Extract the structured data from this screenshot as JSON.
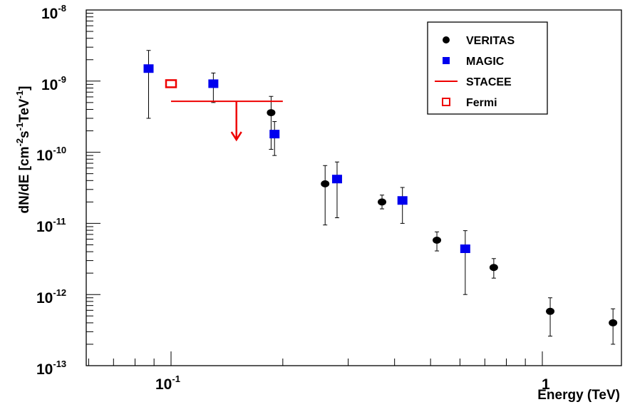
{
  "chart_data": {
    "type": "scatter",
    "title": "",
    "xlabel": "Energy (TeV)",
    "ylabel_main": "dN/dE [cm",
    "ylabel_parts": [
      "dN/dE [cm",
      "-2",
      "s",
      "-1",
      "TeV",
      "-1",
      "]"
    ],
    "xscale": "log",
    "yscale": "log",
    "xlim": [
      0.06,
      1.8
    ],
    "ylim": [
      1e-13,
      1e-08
    ],
    "x_ticks": [
      {
        "value": 0.1,
        "base": "10",
        "exp": "-1"
      },
      {
        "value": 1,
        "label": "1"
      }
    ],
    "y_ticks": [
      {
        "value": 1e-13,
        "base": "10",
        "exp": "-13"
      },
      {
        "value": 1e-12,
        "base": "10",
        "exp": "-12"
      },
      {
        "value": 1e-11,
        "base": "10",
        "exp": "-11"
      },
      {
        "value": 1e-10,
        "base": "10",
        "exp": "-10"
      },
      {
        "value": 1e-09,
        "base": "10",
        "exp": "-9"
      },
      {
        "value": 1e-08,
        "base": "10",
        "exp": "-8"
      }
    ],
    "grid": false,
    "legend_position": "top-right",
    "series": [
      {
        "name": "VERITAS",
        "marker": "circle",
        "color": "#000000",
        "points": [
          {
            "x": 0.186,
            "y": 3.6e-10,
            "ylo": 1.1e-10,
            "yhi": 6.1e-10
          },
          {
            "x": 0.26,
            "y": 3.6e-11,
            "ylo": 9.5e-12,
            "yhi": 6.5e-11
          },
          {
            "x": 0.37,
            "y": 2e-11,
            "ylo": 1.6e-11,
            "yhi": 2.5e-11
          },
          {
            "x": 0.52,
            "y": 5.8e-12,
            "ylo": 4.1e-12,
            "yhi": 7.6e-12
          },
          {
            "x": 0.74,
            "y": 2.4e-12,
            "ylo": 1.7e-12,
            "yhi": 3.2e-12
          },
          {
            "x": 1.05,
            "y": 5.8e-13,
            "ylo": 2.6e-13,
            "yhi": 9e-13
          },
          {
            "x": 1.55,
            "y": 4e-13,
            "ylo": 2e-13,
            "yhi": 6.3e-13
          }
        ]
      },
      {
        "name": "MAGIC",
        "marker": "square",
        "color": "#0000ee",
        "points": [
          {
            "x": 0.087,
            "y": 1.5e-09,
            "ylo": 3e-10,
            "yhi": 2.7e-09
          },
          {
            "x": 0.13,
            "y": 9.2e-10,
            "ylo": 5e-10,
            "yhi": 1.3e-09
          },
          {
            "x": 0.19,
            "y": 1.8e-10,
            "ylo": 9e-11,
            "yhi": 2.7e-10
          },
          {
            "x": 0.28,
            "y": 4.2e-11,
            "ylo": 1.2e-11,
            "yhi": 7.3e-11
          },
          {
            "x": 0.42,
            "y": 2.1e-11,
            "ylo": 1e-11,
            "yhi": 3.2e-11
          },
          {
            "x": 0.62,
            "y": 4.4e-12,
            "ylo": 1e-12,
            "yhi": 7.9e-12
          }
        ]
      },
      {
        "name": "STACEE",
        "marker": "upper-limit",
        "color": "#ee0000",
        "points": [
          {
            "x": 0.15,
            "y": 5.2e-10,
            "xlo": 0.1,
            "xhi": 0.2,
            "arrow_to": 1.5e-10
          }
        ]
      },
      {
        "name": "Fermi",
        "marker": "open-square",
        "color": "#ee0000",
        "points": [
          {
            "x": 0.1,
            "y": 9.2e-10
          }
        ]
      }
    ]
  }
}
